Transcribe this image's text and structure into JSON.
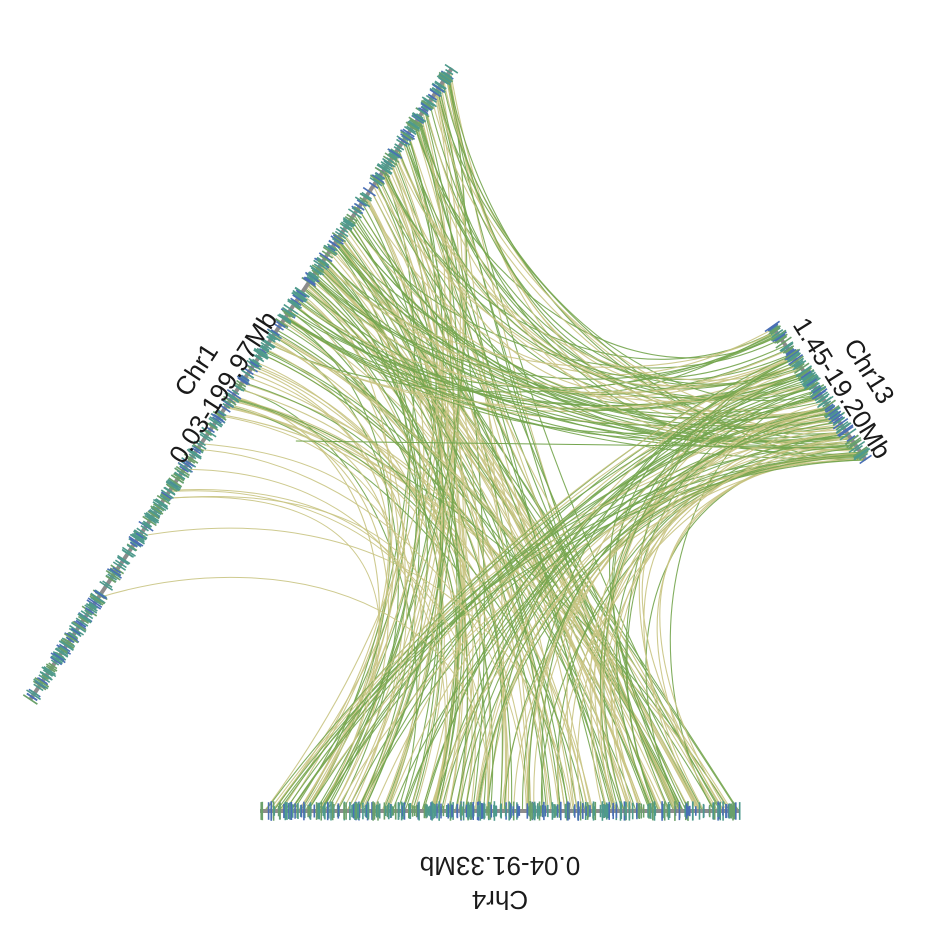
{
  "chromosomes": [
    {
      "id": "chr1",
      "name": "Chr1",
      "range": "0.03-199.97Mb"
    },
    {
      "id": "chr13",
      "name": "Chr13",
      "range": "1.45-19.20Mb"
    },
    {
      "id": "chr4",
      "name": "Chr4",
      "range": "0.04-91.33Mb"
    }
  ],
  "colors": {
    "link_green": "#74a54e",
    "link_tan": "#c9c483",
    "axis_gray": "#8c8c8c",
    "gene_teal": "#4e9a8c",
    "gene_blue": "#4a6fb5",
    "gene_green": "#6aa06a"
  }
}
